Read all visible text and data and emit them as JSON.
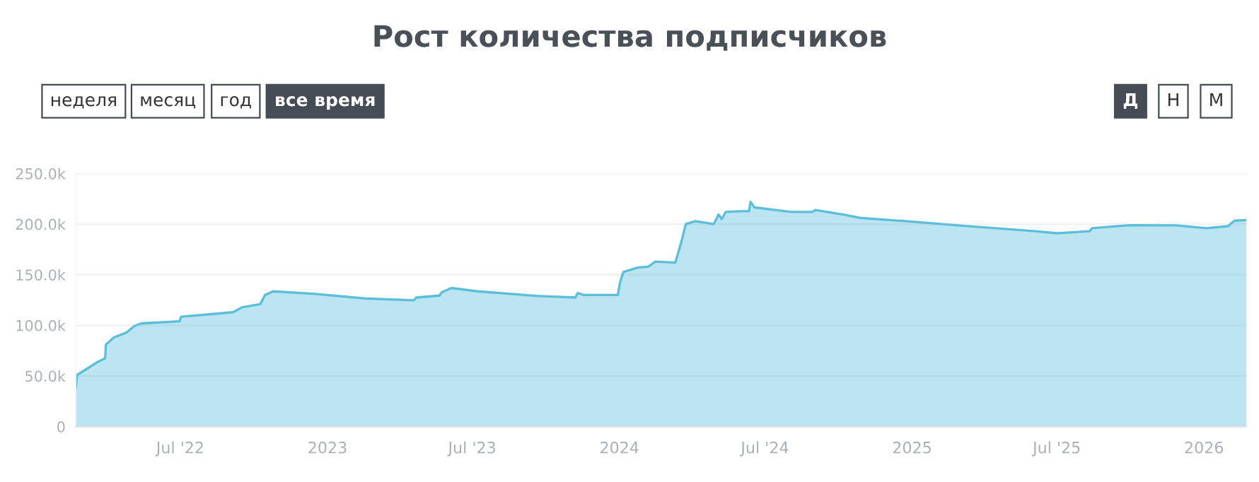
{
  "chart_data": {
    "type": "area",
    "title": "Рост количества подписчиков",
    "annotations": [
      "неделя",
      "месяц",
      "год",
      "все время",
      "Д",
      "Н",
      "М"
    ],
    "x": [
      "2022-02-20",
      "2022-02-22",
      "2022-03-08",
      "2022-03-20",
      "2022-03-29",
      "2022-03-30",
      "2022-04-09",
      "2022-04-25",
      "2022-05-04",
      "2022-05-13",
      "2022-06-30",
      "2022-07-02",
      "2022-09-05",
      "2022-09-17",
      "2022-10-09",
      "2022-10-15",
      "2022-10-25",
      "2022-12-17",
      "2023-02-16",
      "2023-04-19",
      "2023-04-22",
      "2023-05-21",
      "2023-05-24",
      "2023-06-05",
      "2023-07-08",
      "2023-09-22",
      "2023-11-07",
      "2023-11-10",
      "2023-11-17",
      "2023-12-30",
      "2024-01-02",
      "2024-01-06",
      "2024-01-24",
      "2024-02-06",
      "2024-02-15",
      "2024-03-11",
      "2024-03-19",
      "2024-03-24",
      "2024-04-05",
      "2024-04-28",
      "2024-05-04",
      "2024-05-08",
      "2024-05-13",
      "2024-05-31",
      "2024-06-11",
      "2024-06-13",
      "2024-06-18",
      "2024-08-03",
      "2024-08-29",
      "2024-09-02",
      "2024-10-07",
      "2024-10-30",
      "2025-01-01",
      "2025-02-24",
      "2025-06-04",
      "2025-07-01",
      "2025-08-11",
      "2025-08-14",
      "2025-09-30",
      "2025-11-27",
      "2026-01-04",
      "2026-01-31",
      "2026-02-08",
      "2026-02-23"
    ],
    "series": [
      {
        "color": "#5bbfdc",
        "values": [
          37000,
          51000,
          58000,
          64000,
          67500,
          81000,
          88000,
          93000,
          99000,
          102000,
          104000,
          108500,
          113000,
          118000,
          121000,
          130000,
          133600,
          131000,
          126600,
          124800,
          127500,
          129400,
          132700,
          136900,
          133600,
          129000,
          127500,
          132000,
          130000,
          130000,
          143000,
          152700,
          157000,
          158000,
          163000,
          162000,
          184000,
          200000,
          203000,
          200000,
          209500,
          205000,
          212000,
          212700,
          212700,
          222000,
          216500,
          212000,
          212000,
          214000,
          209500,
          206000,
          202500,
          199000,
          193000,
          191000,
          193000,
          196000,
          199000,
          198800,
          196000,
          198000,
          203400,
          204000
        ]
      }
    ],
    "xlim": [
      "2022-02-20",
      "2026-02-23"
    ],
    "xticks": [
      {
        "value": "2022-07-01",
        "label": "Jul '22"
      },
      {
        "value": "2023-01-01",
        "label": "2023"
      },
      {
        "value": "2023-07-01",
        "label": "Jul '23"
      },
      {
        "value": "2024-01-01",
        "label": "2024"
      },
      {
        "value": "2024-07-01",
        "label": "Jul '24"
      },
      {
        "value": "2025-01-01",
        "label": "2025"
      },
      {
        "value": "2025-07-01",
        "label": "Jul '25"
      },
      {
        "value": "2026-01-01",
        "label": "2026"
      }
    ],
    "ylim": [
      0,
      250000
    ],
    "yticks": [
      0,
      {
        "value": 50000,
        "label": "50.0k"
      },
      {
        "value": 100000,
        "label": "100.0k"
      },
      {
        "value": 150000,
        "label": "150.0k"
      },
      {
        "value": 200000,
        "label": "200.0k"
      },
      {
        "value": 250000,
        "label": "250.0k"
      }
    ],
    "grid": "y",
    "legend": false
  }
}
